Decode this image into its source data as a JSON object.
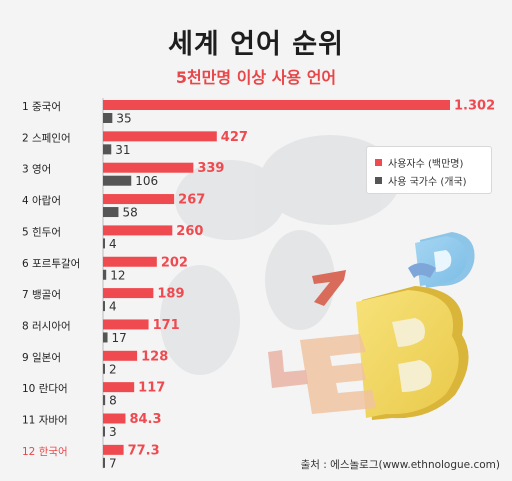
{
  "title": "세계 언어 순위",
  "subtitle": "5천만명 이상 사용 언어",
  "legend": {
    "speakers_label": "사용자수 (백만명)",
    "countries_label": "사용 국가수 (개국)"
  },
  "source": "출처 : 에스놀로그(www.ethnologue.com)",
  "colors": {
    "speakers": "#ef4a4f",
    "countries": "#555555",
    "highlight_label": "#e8474a",
    "label": "#222222"
  },
  "chart_data": {
    "type": "bar",
    "orientation": "horizontal",
    "title": "세계 언어 순위",
    "subtitle": "5천만명 이상 사용 언어",
    "categories": [
      "1 중국어",
      "2 스페인어",
      "3 영어",
      "4 아랍어",
      "5 힌두어",
      "6 포르투갈어",
      "7 뱅골어",
      "8 러시아어",
      "9 일본어",
      "10 란다어",
      "11 자바어",
      "12 한국어"
    ],
    "highlight_category": "12 한국어",
    "series": [
      {
        "name": "사용자수 (백만명)",
        "values": [
          1302,
          427,
          339,
          267,
          260,
          202,
          189,
          171,
          128,
          117,
          84.3,
          77.3
        ],
        "labels": [
          "1.302",
          "427",
          "339",
          "267",
          "260",
          "202",
          "189",
          "171",
          "128",
          "117",
          "84.3",
          "77.3"
        ]
      },
      {
        "name": "사용 국가수 (개국)",
        "values": [
          35,
          31,
          106,
          58,
          4,
          12,
          4,
          17,
          2,
          8,
          3,
          7
        ],
        "labels": [
          "35",
          "31",
          "106",
          "58",
          "4",
          "12",
          "4",
          "17",
          "2",
          "8",
          "3",
          "7"
        ]
      }
    ],
    "legend_position": "right",
    "grid": false
  }
}
